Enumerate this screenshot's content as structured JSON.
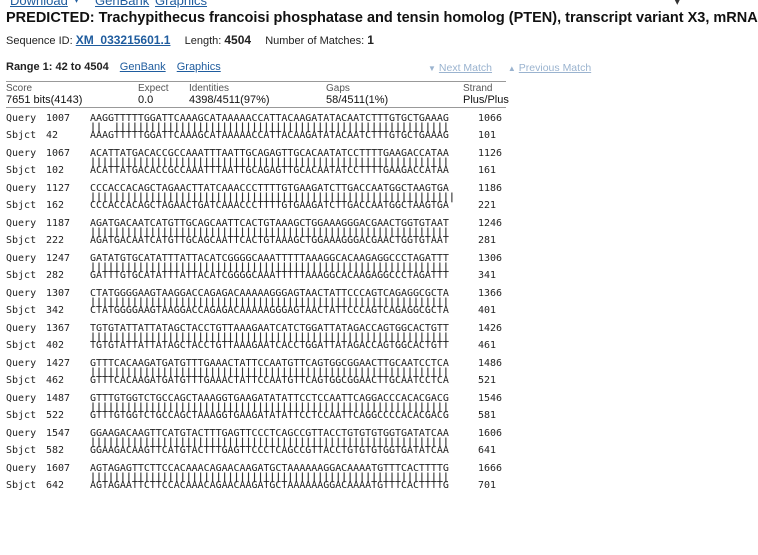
{
  "top": {
    "download_label": "Download",
    "genbank_label": "GenBank",
    "graphics_label": "Graphics"
  },
  "title": "PREDICTED: Trachypithecus francoisi phosphatase and tensin homolog (PTEN), transcript variant X3, mRNA",
  "seqinfo": {
    "id_label": "Sequence ID:",
    "id_value": "XM_033215601.1",
    "length_label": "Length:",
    "length_value": "4504",
    "matches_label": "Number of Matches:",
    "matches_value": "1"
  },
  "range": {
    "text": "Range 1: 42 to 4504",
    "genbank": "GenBank",
    "graphics": "Graphics",
    "next_match": "Next Match",
    "previous_match": "Previous Match"
  },
  "stats": {
    "headers": [
      "Score",
      "Expect",
      "Identities",
      "Gaps",
      "Strand"
    ],
    "values": [
      "7651 bits(4143)",
      "0.0",
      "4398/4511(97%)",
      "58/4511(1%)",
      "Plus/Plus"
    ]
  },
  "alignment": [
    {
      "q_start": "1007",
      "query": "AAGGTTTTTGGATTCAAAGCATAAAAACCATTACAAGATATACAATCTTTGTGCTGAAAG",
      "q_end": "1066",
      "match": "||  ||||||||||||||||||||||||||||||||||||||||||||||||||||||||",
      "s_start": "42",
      "sbjct": "AAAGTTTTTGGATTCAAAGCATAAAAACCATTACAAGATATACAATCTTTGTGCTGAAAG",
      "s_end": "101"
    },
    {
      "q_start": "1067",
      "query": "ACATTATGACACCGCCAAATTTAATTGCAGAGTTGCACAATATCCTTTTGAAGACCATAA",
      "q_end": "1126",
      "match": "||||||||||||||||||||||||||||||||||||||||||||||||||||||||||||",
      "s_start": "102",
      "sbjct": "ACATTATGACACCGCCAAATTTAATTGCAGAGTTGCACAATATCCTTTTGAAGACCATAA",
      "s_end": "161"
    },
    {
      "q_start": "1127",
      "query": "CCCACCACAGCTAGAACTTATCAAACCCTTTTGTGAAGATCTTGACCAATGGCTAAGTGA",
      "q_end": "1186",
      "match": "|||||||||||||||||||||||||||||||||||||||||||||||||||||||||||||",
      "s_start": "162",
      "sbjct": "CCCACCACAGCTAGAACTGATCAAACCCTTTTGTGAAGATCTTGACCAATGGCTAAGTGA",
      "s_end": "221"
    },
    {
      "q_start": "1187",
      "query": "AGATGACAATCATGTTGCAGCAATTCACTGTAAAGCTGGAAAGGGACGAACTGGTGTAAT",
      "q_end": "1246",
      "match": "||||||||||||||||||||||||||||||||||||||||||||||||||||||||||||",
      "s_start": "222",
      "sbjct": "AGATGACAATCATGTTGCAGCAATTCACTGTAAAGCTGGAAAGGGACGAACTGGTGTAAT",
      "s_end": "281"
    },
    {
      "q_start": "1247",
      "query": "GATATGTGCATATTTATTACATCGGGGCAAATTTTTAAAGGCACAAGAGGCCCTAGATTT",
      "q_end": "1306",
      "match": "||||||||||||||||||||||||||||||||||||||||||||||||||||||||||||",
      "s_start": "282",
      "sbjct": "GATTTGTGCATATTTATTACATCGGGGCAAATTTTTAAAGGCACAAGAGGCCCTAGATTT",
      "s_end": "341"
    },
    {
      "q_start": "1307",
      "query": "CTATGGGGAAGTAAGGACCAGAGACAAAAAGGGAGTAACTATTCCCAGTCAGAGGCGCTA",
      "q_end": "1366",
      "match": "||||||||||||||||||||||||||||||||||||||||||||||||||||||||||||",
      "s_start": "342",
      "sbjct": "CTATGGGGAAGTAAGGACCAGAGACAAAAAGGGAGTAACTATTCCCAGTCAGAGGCGCTA",
      "s_end": "401"
    },
    {
      "q_start": "1367",
      "query": "TGTGTATTATTATAGCTACCTGTTAAAGAATCATCTGGATTATAGACCAGTGGCACTGTT",
      "q_end": "1426",
      "match": "||||||||||||||||||||||||||||||||||||||||||||||||||||||||||||",
      "s_start": "402",
      "sbjct": "TGTGTATTATTATAGCTACCTGTTAAAGAATCACCTGGATTATAGACCAGTGGCACTGTT",
      "s_end": "461"
    },
    {
      "q_start": "1427",
      "query": "GTTTCACAAGATGATGTTTGAAACTATTCCAATGTTCAGTGGCGGAACTTGCAATCCTCA",
      "q_end": "1486",
      "match": "||||||||||||||||||||||||||||||||||||||||||||||||||||||||||||",
      "s_start": "462",
      "sbjct": "GTTTCACAAGATGATGTTTGAAACTATTCCAATGTTCAGTGGCGGAACTTGCAATCCTCA",
      "s_end": "521"
    },
    {
      "q_start": "1487",
      "query": "GTTTGTGGTCTGCCAGCTAAAGGTGAAGATATATTCCTCCAATTCAGGACCCACACGACG",
      "q_end": "1546",
      "match": "||||||||||||||||||||||||||||||||||||||||||||||||||||||||||||",
      "s_start": "522",
      "sbjct": "GTTTGTGGTCTGCCAGCTAAAGGTGAAGATATATTCCTCCAATTCAGGCCCCACACGACG",
      "s_end": "581"
    },
    {
      "q_start": "1547",
      "query": "GGAAGACAAGTTCATGTACTTTGAGTTCCCTCAGCCGTTACCTGTGTGTGGTGATATCAA",
      "q_end": "1606",
      "match": "||||||||||||||||||||||||||||||||||||||||||||||||||||||||||||",
      "s_start": "582",
      "sbjct": "GGAAGACAAGTTCATGTACTTTGAGTTCCCTCAGCCGTTACCTGTGTGTGGTGATATCAA",
      "s_end": "641"
    },
    {
      "q_start": "1607",
      "query": "AGTAGAGTTCTTCCACAAACAGAACAAGATGCTAAAAAAGGACAAAATGTTTCACTTTTG",
      "q_end": "1666",
      "match": "||||||||||||||||||||||||||||||||||||||||||||||||||||||||||||",
      "s_start": "642",
      "sbjct": "AGTAGAATTCTTCCACAAACAGAACAAGATGCTAAAAAAGGACAAAATGTTTCACTTTTG",
      "s_end": "701"
    }
  ]
}
